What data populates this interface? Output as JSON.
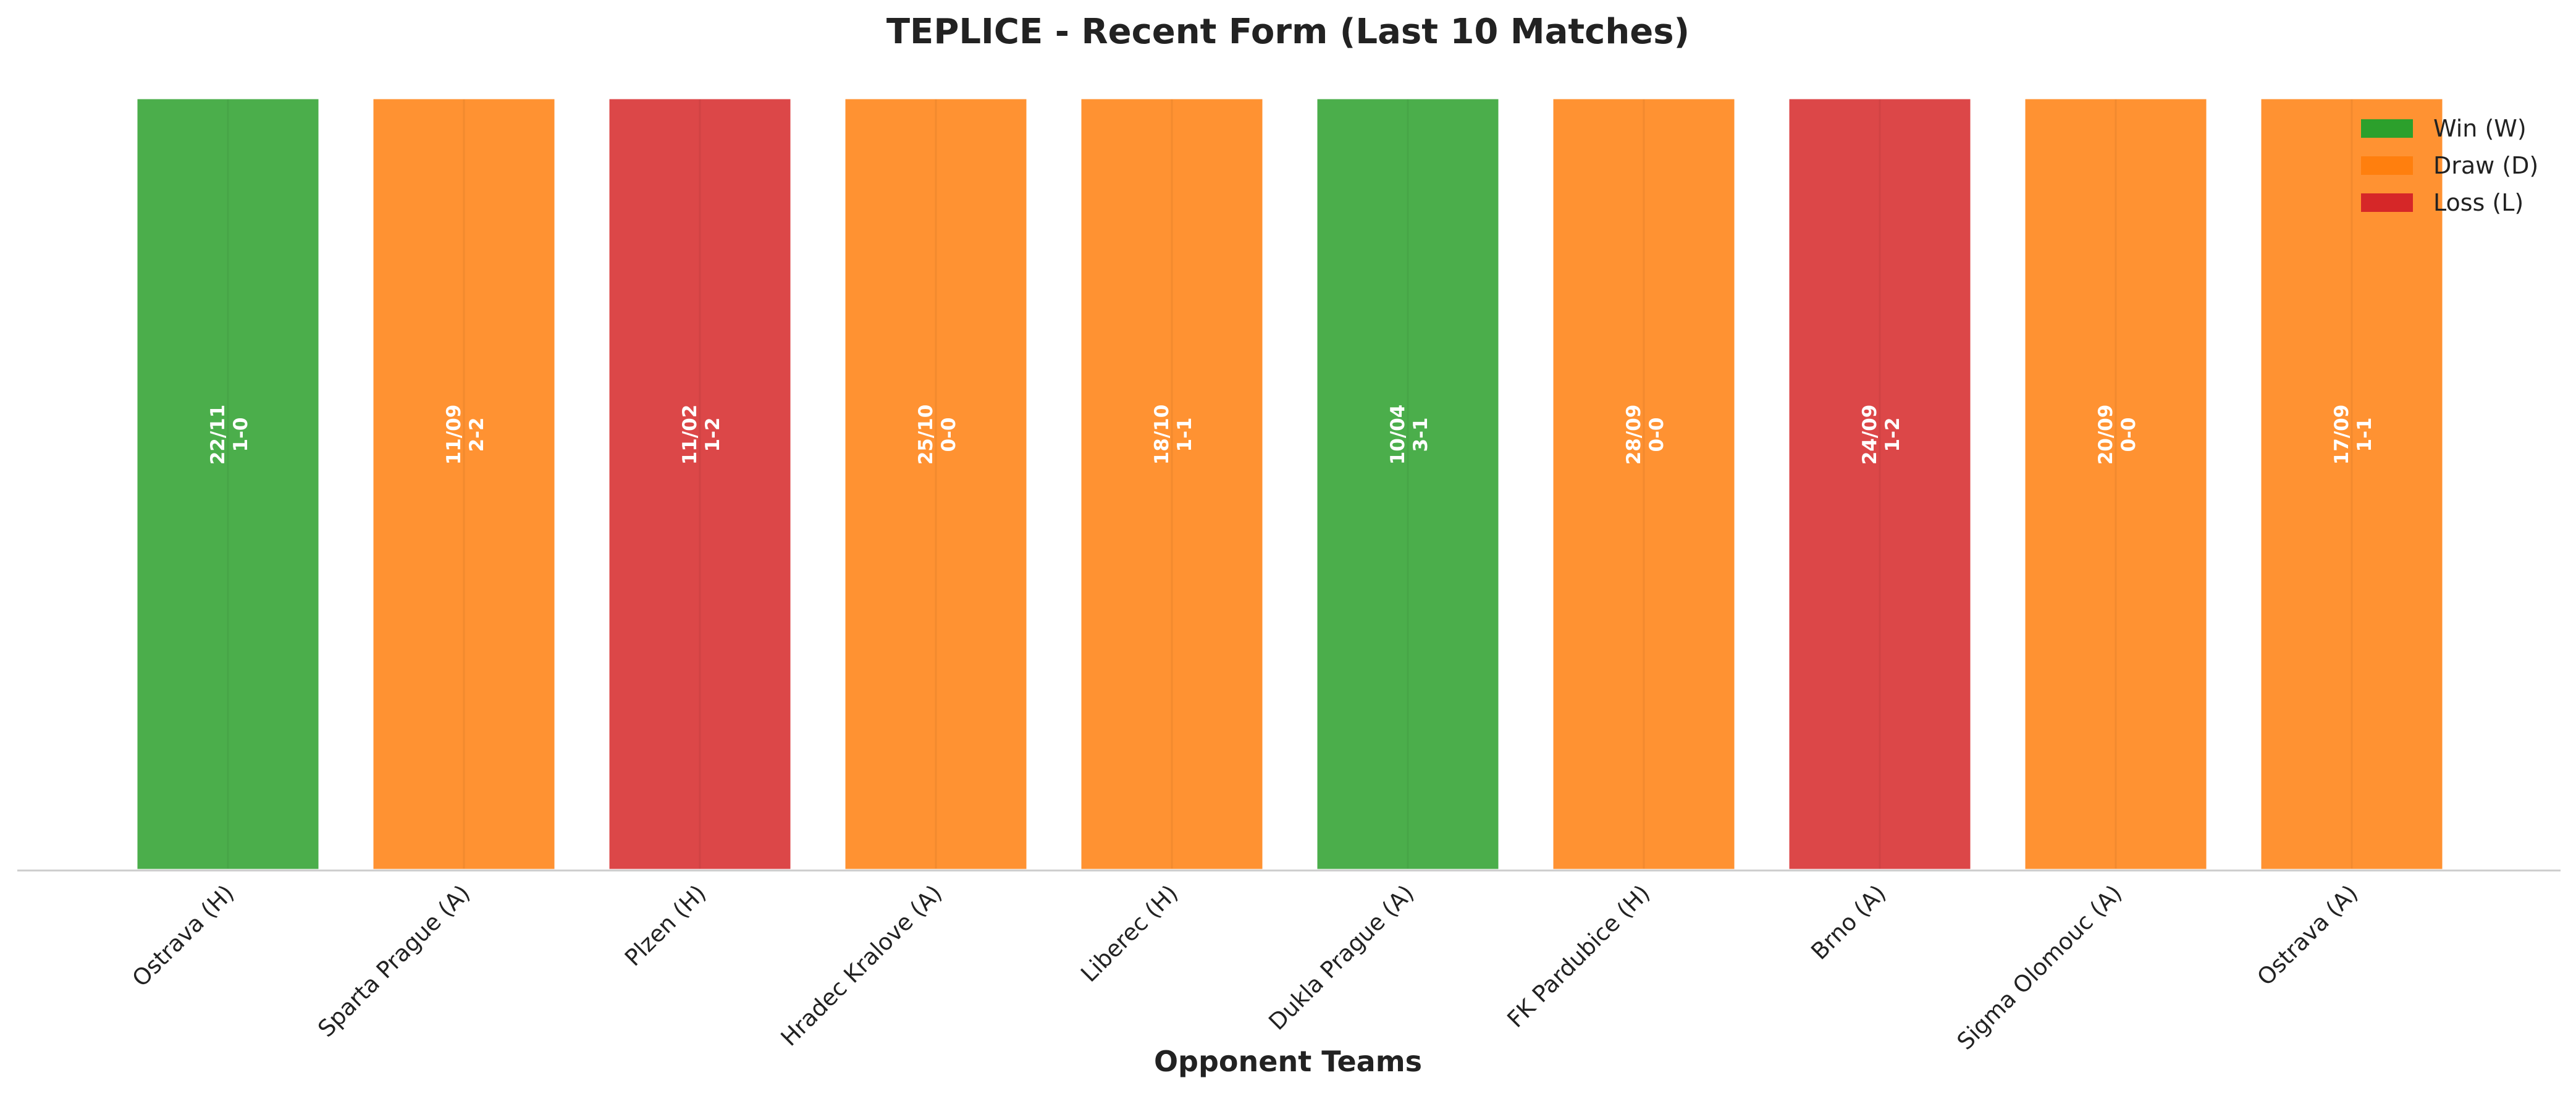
{
  "chart_data": {
    "type": "bar",
    "title": "TEPLICE - Recent Form (Last 10 Matches)",
    "xlabel": "Opponent Teams",
    "ylabel": "",
    "ylim": [
      0,
      1
    ],
    "grid": false,
    "legend_position": "top-right",
    "categories": [
      "Ostrava (H)",
      "Sparta Prague (A)",
      "Plzen (H)",
      "Hradec Kralove (A)",
      "Liberec (H)",
      "Dukla Prague (A)",
      "FK Pardubice (H)",
      "Brno (A)",
      "Sigma Olomouc (A)",
      "Ostrava (A)"
    ],
    "values": [
      1,
      1,
      1,
      1,
      1,
      1,
      1,
      1,
      1,
      1
    ],
    "results": [
      "W",
      "D",
      "L",
      "D",
      "D",
      "W",
      "D",
      "L",
      "D",
      "D"
    ],
    "dates": [
      "22/11",
      "11/09",
      "11/02",
      "25/10",
      "18/10",
      "10/04",
      "28/09",
      "24/09",
      "20/09",
      "17/09"
    ],
    "scores": [
      "1-0",
      "2-2",
      "1-2",
      "0-0",
      "1-1",
      "3-1",
      "0-0",
      "1-2",
      "0-0",
      "1-1"
    ],
    "legend": [
      {
        "key": "W",
        "label": "Win (W)",
        "color": "#2ca02c"
      },
      {
        "key": "D",
        "label": "Draw (D)",
        "color": "#ff7f0e"
      },
      {
        "key": "L",
        "label": "Loss (L)",
        "color": "#d62728"
      }
    ]
  }
}
